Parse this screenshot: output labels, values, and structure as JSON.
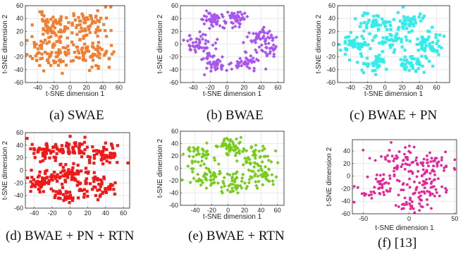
{
  "chart_data": [
    {
      "type": "scatter",
      "caption": "(a) SWAE",
      "color": "#f07f32",
      "xlabel": "t-SNE dimension 1",
      "ylabel": "t-SNE dimension 2",
      "xlim": [
        -55,
        67
      ],
      "ylim": [
        -60,
        60
      ],
      "xticks": [
        -40,
        -20,
        0,
        20,
        40,
        60
      ],
      "yticks": [
        -60,
        -40,
        -20,
        0,
        20,
        40,
        60
      ],
      "grid": true,
      "seed": 11,
      "clusters": [
        {
          "cx": -20,
          "cy": 30,
          "sx": 15,
          "sy": 12,
          "n": 55
        },
        {
          "cx": 20,
          "cy": 30,
          "sx": 15,
          "sy": 12,
          "n": 50
        },
        {
          "cx": -25,
          "cy": -15,
          "sx": 17,
          "sy": 16,
          "n": 60
        },
        {
          "cx": 25,
          "cy": -15,
          "sx": 18,
          "sy": 17,
          "n": 60
        },
        {
          "cx": 0,
          "cy": 5,
          "sx": 28,
          "sy": 25,
          "n": 45
        }
      ]
    },
    {
      "type": "scatter",
      "caption": "(b) BWAE",
      "color": "#a855f0",
      "xlabel": "t-SNE dimension 1",
      "ylabel": "t-SNE dimension 2",
      "xlim": [
        -55,
        67
      ],
      "ylim": [
        -60,
        60
      ],
      "xticks": [
        -40,
        -20,
        0,
        20,
        40,
        60
      ],
      "yticks": [
        -60,
        -40,
        -20,
        0,
        20,
        40,
        60
      ],
      "grid": true,
      "seed": 23,
      "clusters": [
        {
          "cx": -18,
          "cy": 38,
          "sx": 10,
          "sy": 9,
          "n": 45
        },
        {
          "cx": 12,
          "cy": 40,
          "sx": 8,
          "sy": 9,
          "n": 40
        },
        {
          "cx": -32,
          "cy": 0,
          "sx": 12,
          "sy": 10,
          "n": 50
        },
        {
          "cx": 38,
          "cy": 10,
          "sx": 11,
          "sy": 10,
          "n": 45
        },
        {
          "cx": -15,
          "cy": -30,
          "sx": 10,
          "sy": 10,
          "n": 45
        },
        {
          "cx": 20,
          "cy": -28,
          "sx": 10,
          "sy": 9,
          "n": 40
        },
        {
          "cx": 50,
          "cy": -10,
          "sx": 7,
          "sy": 9,
          "n": 25
        }
      ]
    },
    {
      "type": "scatter",
      "caption": "(c) BWAE + PN",
      "color": "#33ecec",
      "xlabel": "t-SNE dimension 1",
      "ylabel": "t-SNE dimension 2",
      "xlim": [
        -55,
        75
      ],
      "ylim": [
        -60,
        60
      ],
      "xticks": [
        -40,
        -20,
        0,
        20,
        40,
        60
      ],
      "yticks": [
        -60,
        -40,
        -20,
        0,
        20,
        40,
        60
      ],
      "grid": true,
      "seed": 37,
      "clusters": [
        {
          "cx": -10,
          "cy": 35,
          "sx": 12,
          "sy": 10,
          "n": 45
        },
        {
          "cx": 30,
          "cy": 35,
          "sx": 10,
          "sy": 10,
          "n": 40
        },
        {
          "cx": -35,
          "cy": 0,
          "sx": 12,
          "sy": 12,
          "n": 50
        },
        {
          "cx": 10,
          "cy": 5,
          "sx": 12,
          "sy": 10,
          "n": 40
        },
        {
          "cx": 50,
          "cy": 0,
          "sx": 12,
          "sy": 12,
          "n": 45
        },
        {
          "cx": -10,
          "cy": -30,
          "sx": 12,
          "sy": 10,
          "n": 40
        },
        {
          "cx": 30,
          "cy": -30,
          "sx": 12,
          "sy": 10,
          "n": 40
        }
      ]
    },
    {
      "type": "scatter",
      "caption": "(d) BWAE + PN + RTN",
      "color": "#f01818",
      "xlabel": "",
      "ylabel": "t-SNE dimension 2",
      "xlim": [
        -50,
        67
      ],
      "ylim": [
        -60,
        60
      ],
      "xticks": [
        -40,
        -20,
        0,
        20,
        40,
        60
      ],
      "yticks": [
        -60,
        -40,
        -20,
        0,
        20,
        40,
        60
      ],
      "grid": true,
      "seed": 41,
      "clusters": [
        {
          "cx": -25,
          "cy": 30,
          "sx": 12,
          "sy": 10,
          "n": 55
        },
        {
          "cx": 5,
          "cy": 35,
          "sx": 10,
          "sy": 10,
          "n": 45
        },
        {
          "cx": 40,
          "cy": 25,
          "sx": 12,
          "sy": 12,
          "n": 50
        },
        {
          "cx": -30,
          "cy": -15,
          "sx": 12,
          "sy": 14,
          "n": 55
        },
        {
          "cx": 0,
          "cy": -5,
          "sx": 12,
          "sy": 14,
          "n": 55
        },
        {
          "cx": 30,
          "cy": -25,
          "sx": 14,
          "sy": 14,
          "n": 55
        },
        {
          "cx": -5,
          "cy": -40,
          "sx": 10,
          "sy": 8,
          "n": 30
        }
      ]
    },
    {
      "type": "scatter",
      "caption": "(e) BWAE + RTN",
      "color": "#77cc1c",
      "xlabel": "t-SNE dimension 1",
      "ylabel": "t-SNE dimension 2",
      "xlim": [
        -58,
        68
      ],
      "ylim": [
        -60,
        60
      ],
      "xticks": [
        -40,
        -20,
        0,
        20,
        40,
        60
      ],
      "yticks": [
        -60,
        -40,
        -20,
        0,
        20,
        40,
        60
      ],
      "grid": true,
      "seed": 53,
      "clusters": [
        {
          "cx": -35,
          "cy": 20,
          "sx": 12,
          "sy": 12,
          "n": 45
        },
        {
          "cx": 0,
          "cy": 35,
          "sx": 12,
          "sy": 10,
          "n": 45
        },
        {
          "cx": 30,
          "cy": 25,
          "sx": 14,
          "sy": 12,
          "n": 45
        },
        {
          "cx": -25,
          "cy": -15,
          "sx": 12,
          "sy": 12,
          "n": 45
        },
        {
          "cx": 5,
          "cy": -25,
          "sx": 12,
          "sy": 12,
          "n": 45
        },
        {
          "cx": 40,
          "cy": -10,
          "sx": 12,
          "sy": 14,
          "n": 45
        }
      ]
    },
    {
      "type": "scatter",
      "caption": "(f)  [13]",
      "color": "#e5269a",
      "xlabel": "t-SNE dimension 1",
      "ylabel": "t-SNE dimension 2",
      "xlim": [
        -62,
        52
      ],
      "ylim": [
        -60,
        58
      ],
      "xticks": [
        -50,
        0,
        50
      ],
      "yticks": [
        -60,
        -40,
        -20,
        0,
        20,
        40
      ],
      "grid": true,
      "seed": 67,
      "clusters": [
        {
          "cx": -10,
          "cy": 25,
          "sx": 20,
          "sy": 15,
          "n": 55
        },
        {
          "cx": 25,
          "cy": 15,
          "sx": 18,
          "sy": 18,
          "n": 50
        },
        {
          "cx": -30,
          "cy": -15,
          "sx": 18,
          "sy": 15,
          "n": 50
        },
        {
          "cx": 15,
          "cy": -20,
          "sx": 18,
          "sy": 15,
          "n": 50
        },
        {
          "cx": 0,
          "cy": -45,
          "sx": 10,
          "sy": 8,
          "n": 25
        }
      ]
    }
  ]
}
